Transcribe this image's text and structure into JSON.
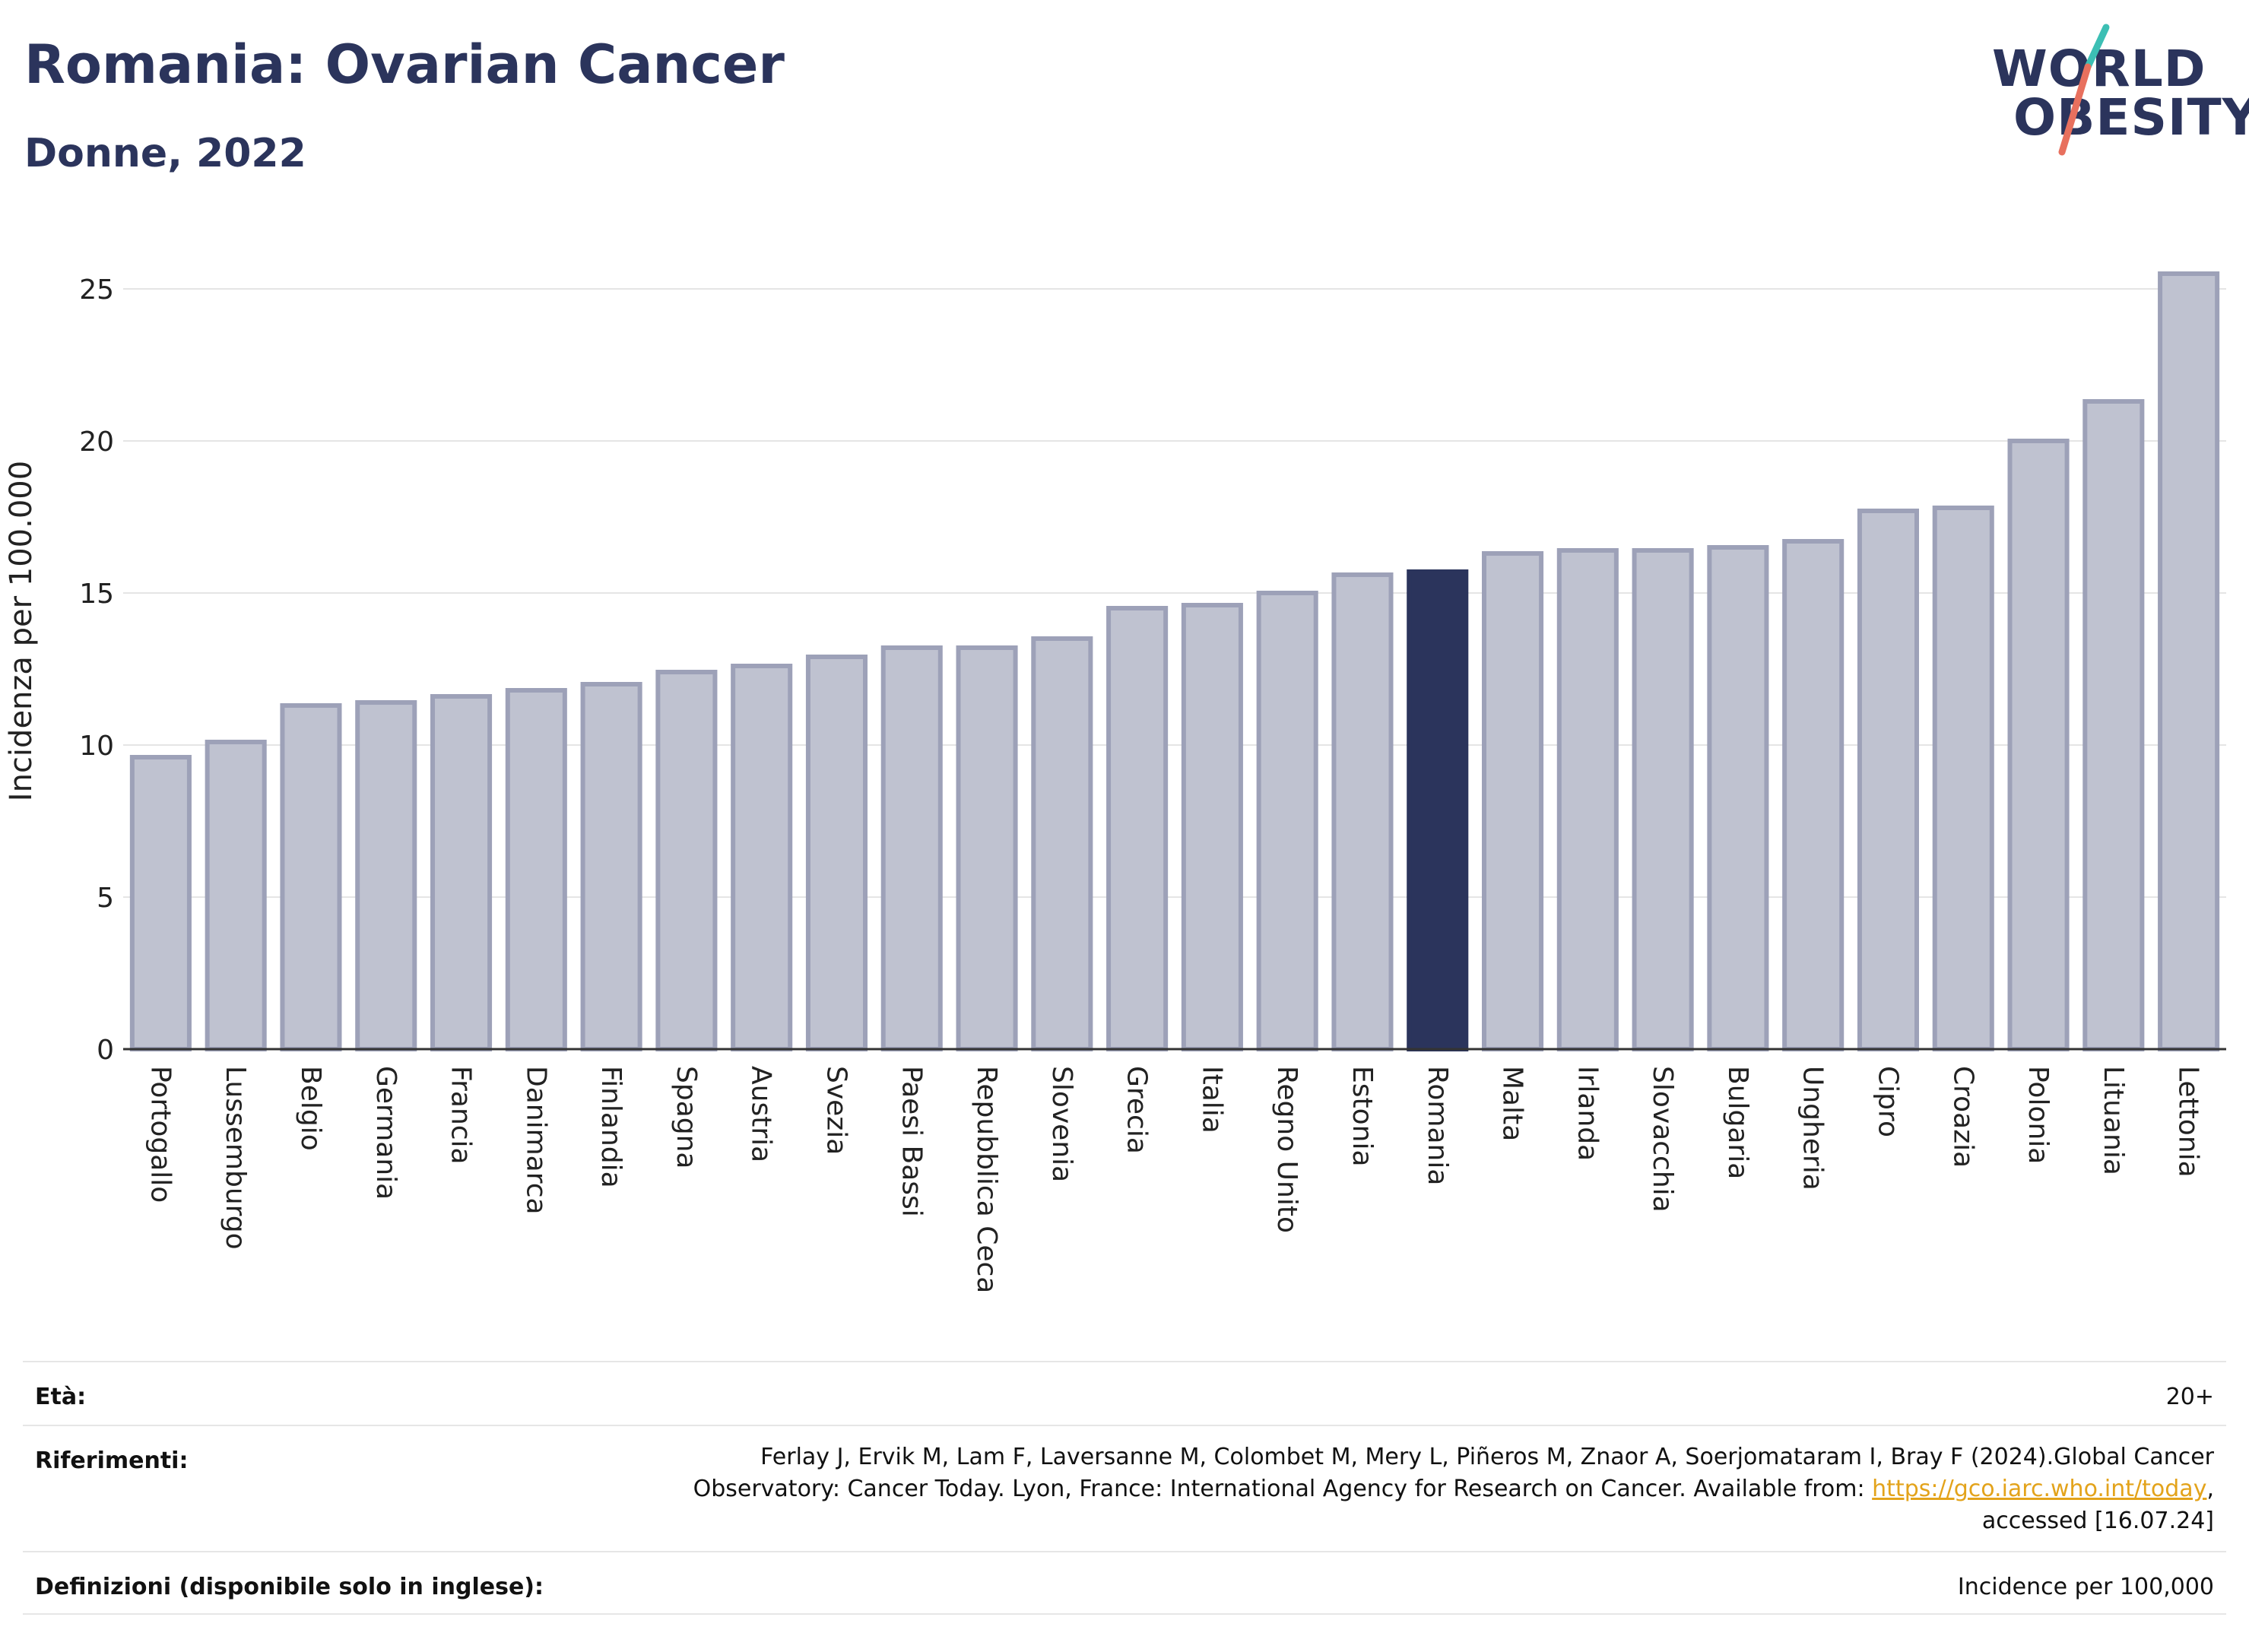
{
  "header": {
    "title": "Romania: Ovarian Cancer",
    "subtitle": "Donne, 2022"
  },
  "logo": {
    "line1": "WORLD",
    "line2": "OBESITY",
    "colors": {
      "text": "#2b345c",
      "slash_top": "#3cbfb4",
      "slash_bottom": "#e8705e"
    }
  },
  "chart_data": {
    "type": "bar",
    "ylabel": "Incidenza per 100.000",
    "ylim": [
      0,
      26
    ],
    "yticks": [
      0,
      5,
      10,
      15,
      20,
      25
    ],
    "grid": true,
    "highlight": "Romania",
    "colors": {
      "bar": "#bfc2d0",
      "bar_border": "#9da1b8",
      "highlight": "#2b345c"
    },
    "categories": [
      "Portogallo",
      "Lussemburgo",
      "Belgio",
      "Germania",
      "Francia",
      "Danimarca",
      "Finlandia",
      "Spagna",
      "Austria",
      "Svezia",
      "Paesi Bassi",
      "Repubblica Ceca",
      "Slovenia",
      "Grecia",
      "Italia",
      "Regno Unito",
      "Estonia",
      "Romania",
      "Malta",
      "Irlanda",
      "Slovacchia",
      "Bulgaria",
      "Ungheria",
      "Cipro",
      "Croazia",
      "Polonia",
      "Lituania",
      "Lettonia"
    ],
    "values": [
      9.6,
      10.1,
      11.3,
      11.4,
      11.6,
      11.8,
      12.0,
      12.4,
      12.6,
      12.9,
      13.2,
      13.2,
      13.5,
      14.5,
      14.6,
      15.0,
      15.6,
      15.7,
      16.3,
      16.4,
      16.4,
      16.5,
      16.7,
      17.7,
      17.8,
      20.0,
      21.3,
      25.5
    ]
  },
  "meta": {
    "age_label": "Età:",
    "age_value": "20+",
    "ref_label": "Riferimenti:",
    "ref_line1": "Ferlay J, Ervik M, Lam F, Laversanne M, Colombet M, Mery L, Piñeros M, Znaor A, Soerjomataram I, Bray F (2024).Global Cancer",
    "ref_line2_pre": "Observatory: Cancer Today. Lyon, France: International Agency for Research on Cancer. Available from: ",
    "ref_link": "https://gco.iarc.who.int/today",
    "ref_line2_post": ",",
    "ref_line3": "accessed [16.07.24]",
    "def_label": "Definizioni (disponibile solo in inglese):",
    "def_value": "Incidence per 100,000"
  }
}
